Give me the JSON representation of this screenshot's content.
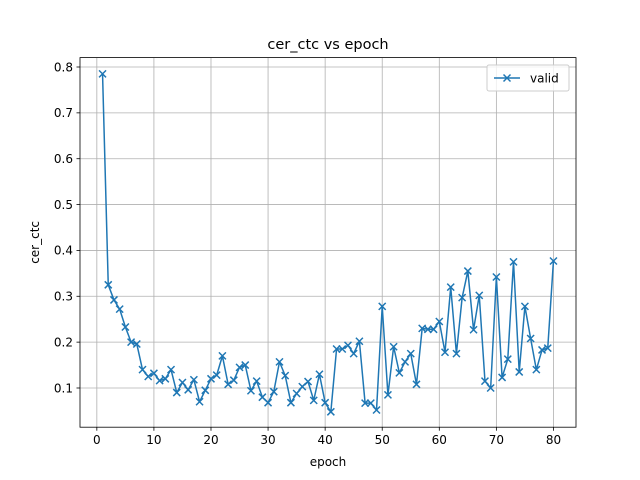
{
  "chart_data": {
    "type": "line",
    "title": "cer_ctc vs epoch",
    "xlabel": "epoch",
    "ylabel": "cer_ctc",
    "xlim": [
      -2.95,
      83.95
    ],
    "ylim": [
      0.0145,
      0.8205
    ],
    "xticks": [
      0,
      10,
      20,
      30,
      40,
      50,
      60,
      70,
      80
    ],
    "yticks": [
      0.1,
      0.2,
      0.3,
      0.4,
      0.5,
      0.6,
      0.7,
      0.8
    ],
    "xtick_labels": [
      "0",
      "10",
      "20",
      "30",
      "40",
      "50",
      "60",
      "70",
      "80"
    ],
    "ytick_labels": [
      "0.1",
      "0.2",
      "0.3",
      "0.4",
      "0.5",
      "0.6",
      "0.7",
      "0.8"
    ],
    "grid": true,
    "legend_position": "top-right",
    "series": [
      {
        "name": "valid",
        "color": "#1f77b4",
        "marker": "x",
        "x": [
          1,
          2,
          3,
          4,
          5,
          6,
          7,
          8,
          9,
          10,
          11,
          12,
          13,
          14,
          15,
          16,
          17,
          18,
          19,
          20,
          21,
          22,
          23,
          24,
          25,
          26,
          27,
          28,
          29,
          30,
          31,
          32,
          33,
          34,
          35,
          36,
          37,
          38,
          39,
          40,
          41,
          42,
          43,
          44,
          45,
          46,
          47,
          48,
          49,
          50,
          51,
          52,
          53,
          54,
          55,
          56,
          57,
          58,
          59,
          60,
          61,
          62,
          63,
          64,
          65,
          66,
          67,
          68,
          69,
          70,
          71,
          72,
          73,
          74,
          75,
          76,
          77,
          78,
          79,
          80
        ],
        "y": [
          0.785,
          0.325,
          0.292,
          0.272,
          0.233,
          0.2,
          0.196,
          0.14,
          0.125,
          0.132,
          0.116,
          0.12,
          0.14,
          0.09,
          0.112,
          0.096,
          0.118,
          0.07,
          0.095,
          0.12,
          0.128,
          0.17,
          0.108,
          0.117,
          0.145,
          0.15,
          0.094,
          0.115,
          0.08,
          0.068,
          0.092,
          0.157,
          0.127,
          0.068,
          0.088,
          0.103,
          0.114,
          0.073,
          0.13,
          0.068,
          0.048,
          0.185,
          0.185,
          0.193,
          0.175,
          0.202,
          0.067,
          0.067,
          0.052,
          0.278,
          0.085,
          0.19,
          0.133,
          0.157,
          0.175,
          0.108,
          0.23,
          0.228,
          0.228,
          0.245,
          0.178,
          0.32,
          0.175,
          0.297,
          0.355,
          0.227,
          0.302,
          0.115,
          0.1,
          0.342,
          0.123,
          0.163,
          0.375,
          0.135,
          0.278,
          0.208,
          0.14,
          0.183,
          0.187,
          0.377
        ]
      }
    ]
  }
}
